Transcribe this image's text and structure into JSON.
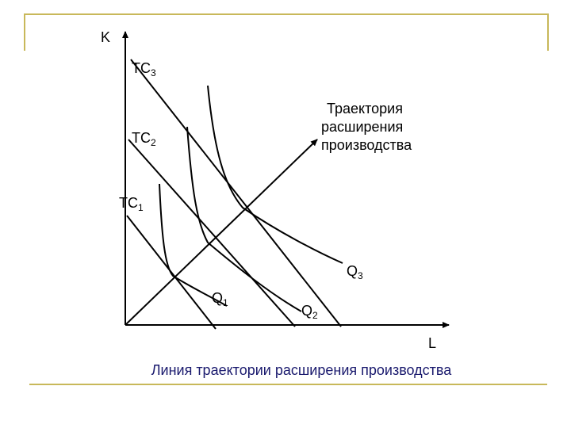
{
  "axes": {
    "y_label": "K",
    "x_label": "L"
  },
  "isocosts": [
    {
      "base": "TC",
      "sub": "3"
    },
    {
      "base": "TC",
      "sub": "2"
    },
    {
      "base": "TC",
      "sub": "1"
    }
  ],
  "isoquants": [
    {
      "base": "Q",
      "sub": "1"
    },
    {
      "base": "Q",
      "sub": "2"
    },
    {
      "base": "Q",
      "sub": "3"
    }
  ],
  "expansion_path_label": [
    "Траектория",
    "расширения",
    "производства"
  ],
  "caption": "Линия траектории расширения производства",
  "colors": {
    "frame": "#c8b85a",
    "caption": "#1a1a6e",
    "lines": "#000000"
  }
}
